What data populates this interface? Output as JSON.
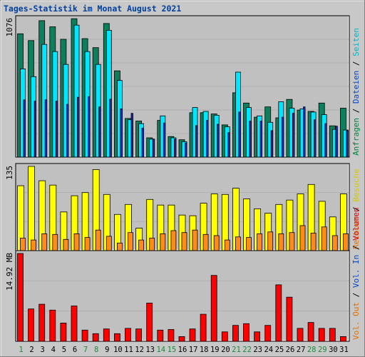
{
  "chart_data": [
    {
      "type": "bar",
      "title": "Tages-Statistik im Monat August 2021",
      "categories": [
        "1",
        "2",
        "3",
        "4",
        "5",
        "6",
        "7",
        "8",
        "9",
        "10",
        "11",
        "12",
        "13",
        "14",
        "15",
        "16",
        "17",
        "18",
        "19",
        "20",
        "21",
        "22",
        "23",
        "24",
        "25",
        "26",
        "27",
        "28",
        "29",
        "30",
        "31"
      ],
      "weekend_days": [
        "1",
        "7",
        "8",
        "14",
        "15",
        "21",
        "22",
        "28",
        "29"
      ],
      "ymax_label": "1076",
      "ylim": [
        0,
        1076
      ],
      "right_axis_labels": [
        {
          "text": "Anfragen",
          "color": "#008040"
        },
        {
          "text": "Dateien",
          "color": "#0044cc"
        },
        {
          "text": "Seiten",
          "color": "#00b4cc"
        }
      ],
      "series": [
        {
          "name": "Anfragen",
          "color": "#0d7f5c",
          "values": [
            958,
            905,
            1060,
            1012,
            915,
            1075,
            920,
            850,
            1038,
            670,
            300,
            280,
            150,
            285,
            160,
            135,
            345,
            345,
            335,
            250,
            500,
            420,
            310,
            390,
            305,
            448,
            365,
            355,
            420,
            243,
            380
          ]
        },
        {
          "name": "Seiten",
          "color": "#00e6ff",
          "values": [
            685,
            625,
            875,
            820,
            720,
            1025,
            820,
            720,
            985,
            595,
            290,
            260,
            140,
            320,
            150,
            120,
            385,
            355,
            325,
            235,
            660,
            385,
            320,
            270,
            430,
            380,
            375,
            350,
            330,
            215,
            210
          ]
        },
        {
          "name": "Dateien",
          "color": "#1030c8",
          "values": [
            445,
            435,
            445,
            435,
            410,
            465,
            470,
            390,
            450,
            375,
            340,
            225,
            140,
            265,
            140,
            110,
            245,
            285,
            255,
            190,
            350,
            280,
            280,
            205,
            310,
            340,
            390,
            290,
            260,
            240,
            205
          ]
        }
      ]
    },
    {
      "type": "bar",
      "ymax_label": "135",
      "ylim": [
        0,
        135
      ],
      "right_axis_labels": [
        {
          "text": "Rechner",
          "color": "#e07000"
        },
        {
          "text": "Besuche",
          "color": "#d4c800"
        }
      ],
      "series": [
        {
          "name": "Besuche",
          "color": "#ffff00",
          "values": [
            104,
            135,
            112,
            105,
            62,
            88,
            93,
            130,
            90,
            58,
            74,
            36,
            82,
            73,
            73,
            57,
            56,
            76,
            91,
            90,
            100,
            83,
            67,
            60,
            74,
            81,
            91,
            106,
            79,
            54,
            91
          ]
        },
        {
          "name": "Rechner",
          "color": "#ff8c1a",
          "values": [
            20,
            17,
            27,
            26,
            18,
            27,
            21,
            33,
            23,
            12,
            29,
            17,
            20,
            27,
            32,
            29,
            33,
            26,
            24,
            17,
            22,
            21,
            27,
            30,
            27,
            29,
            40,
            28,
            38,
            24,
            27
          ]
        }
      ]
    },
    {
      "type": "bar",
      "ymax_label": "14.92 MB",
      "ylim": [
        0,
        14.92
      ],
      "right_axis_labels": [
        {
          "text": "Vol. Out",
          "color": "#e07000"
        },
        {
          "text": "Vol. In",
          "color": "#0044cc"
        },
        {
          "text": "Volumen",
          "color": "#dd0000"
        }
      ],
      "series": [
        {
          "name": "Volumen",
          "color": "#ff0000",
          "values": [
            14.92,
            5.5,
            6.3,
            5.3,
            3.1,
            6.0,
            1.9,
            1.3,
            2.1,
            1.3,
            2.2,
            2.1,
            6.5,
            1.9,
            2.0,
            0.8,
            2.1,
            4.6,
            11.2,
            1.6,
            2.7,
            3.0,
            1.6,
            2.7,
            9.6,
            7.5,
            2.2,
            3.2,
            2.2,
            2.2,
            0.8
          ]
        }
      ]
    }
  ]
}
